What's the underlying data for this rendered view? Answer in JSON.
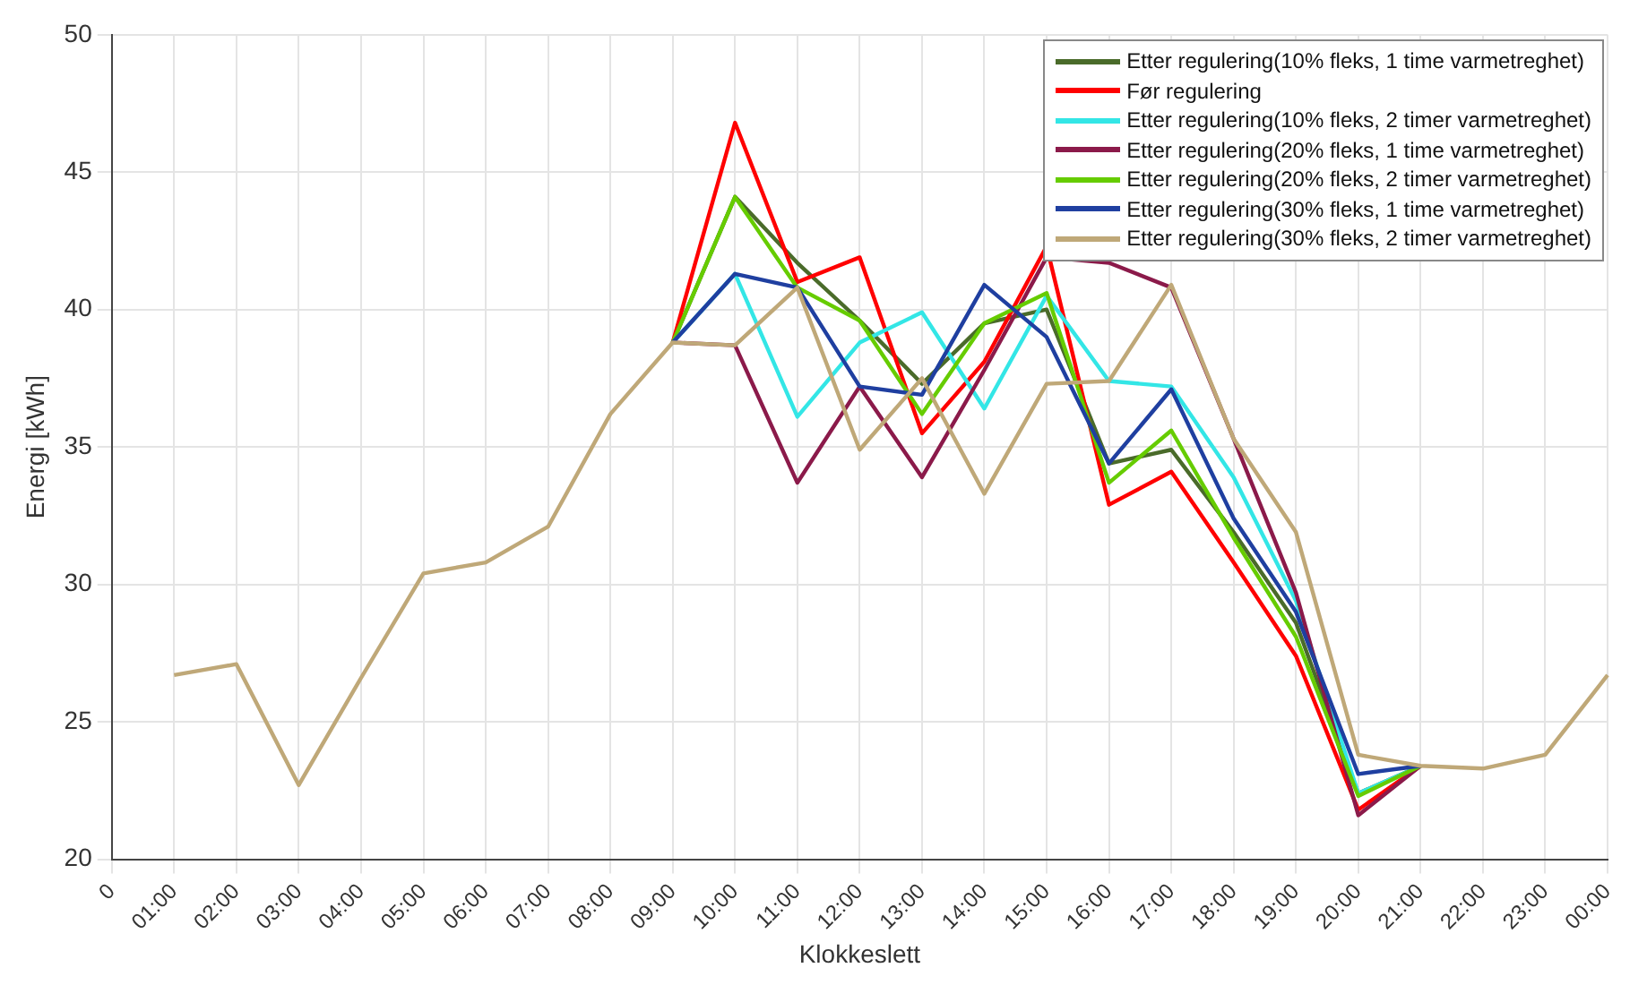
{
  "chart_data": {
    "type": "line",
    "xlabel": "Klokkeslett",
    "ylabel": "Energi [kWh]",
    "categories": [
      "0",
      "01:00",
      "02:00",
      "03:00",
      "04:00",
      "05:00",
      "06:00",
      "07:00",
      "08:00",
      "09:00",
      "10:00",
      "11:00",
      "12:00",
      "13:00",
      "14:00",
      "15:00",
      "16:00",
      "17:00",
      "18:00",
      "19:00",
      "20:00",
      "21:00",
      "22:00",
      "23:00",
      "00:00"
    ],
    "series": [
      {
        "name": "Etter regulering(10% fleks, 1 time varmetreghet)",
        "color": "#4a6b2a",
        "values": [
          null,
          null,
          null,
          null,
          null,
          null,
          null,
          null,
          null,
          38.8,
          44.1,
          41.7,
          39.6,
          37.3,
          39.5,
          40.0,
          34.4,
          34.9,
          31.9,
          28.6,
          22.4,
          23.4,
          null,
          null,
          null
        ]
      },
      {
        "name": "Før regulering",
        "color": "#ff0000",
        "values": [
          null,
          null,
          null,
          null,
          null,
          null,
          null,
          null,
          null,
          38.8,
          46.8,
          41.0,
          41.9,
          35.5,
          38.1,
          42.3,
          32.9,
          34.1,
          30.8,
          27.4,
          21.8,
          23.4,
          null,
          null,
          null
        ]
      },
      {
        "name": "Etter regulering(10% fleks, 2 timer varmetreghet)",
        "color": "#33e6e6",
        "values": [
          null,
          null,
          null,
          null,
          null,
          null,
          null,
          null,
          null,
          38.8,
          41.3,
          36.1,
          38.8,
          39.9,
          36.4,
          40.5,
          37.4,
          37.2,
          33.9,
          29.4,
          22.4,
          23.4,
          null,
          null,
          null
        ]
      },
      {
        "name": "Etter regulering(20% fleks, 1 time varmetreghet)",
        "color": "#8b1a4a",
        "values": [
          null,
          null,
          null,
          null,
          null,
          null,
          null,
          null,
          null,
          38.8,
          38.7,
          33.7,
          37.2,
          33.9,
          37.8,
          41.9,
          41.7,
          40.8,
          35.3,
          29.7,
          21.6,
          23.4,
          null,
          null,
          null
        ]
      },
      {
        "name": "Etter regulering(20% fleks, 2 timer varmetreghet)",
        "color": "#66cc00",
        "values": [
          null,
          null,
          null,
          null,
          null,
          null,
          null,
          null,
          null,
          38.8,
          44.1,
          40.8,
          39.6,
          36.2,
          39.5,
          40.6,
          33.7,
          35.6,
          31.7,
          28.1,
          22.3,
          23.4,
          null,
          null,
          null
        ]
      },
      {
        "name": "Etter regulering(30% fleks, 1 time varmetreghet)",
        "color": "#1f3fa0",
        "values": [
          null,
          null,
          null,
          null,
          null,
          null,
          null,
          null,
          null,
          38.8,
          41.3,
          40.8,
          37.2,
          36.9,
          40.9,
          39.0,
          34.4,
          37.1,
          32.4,
          29.0,
          23.1,
          23.4,
          null,
          null,
          null
        ]
      },
      {
        "name": "Etter regulering(30% fleks, 2 timer varmetreghet)",
        "color": "#bfa878",
        "values": [
          null,
          26.7,
          27.1,
          22.7,
          26.6,
          30.4,
          30.8,
          32.1,
          36.2,
          38.8,
          38.7,
          40.8,
          34.9,
          37.5,
          33.3,
          37.3,
          37.4,
          40.9,
          35.3,
          31.9,
          23.8,
          23.4,
          23.3,
          23.8,
          26.7
        ]
      }
    ],
    "ylim": [
      20,
      50
    ],
    "yticks": [
      20,
      25,
      30,
      35,
      40,
      45,
      50
    ],
    "grid": true,
    "legend": "top right",
    "marker": "none",
    "line_style": "solid"
  }
}
